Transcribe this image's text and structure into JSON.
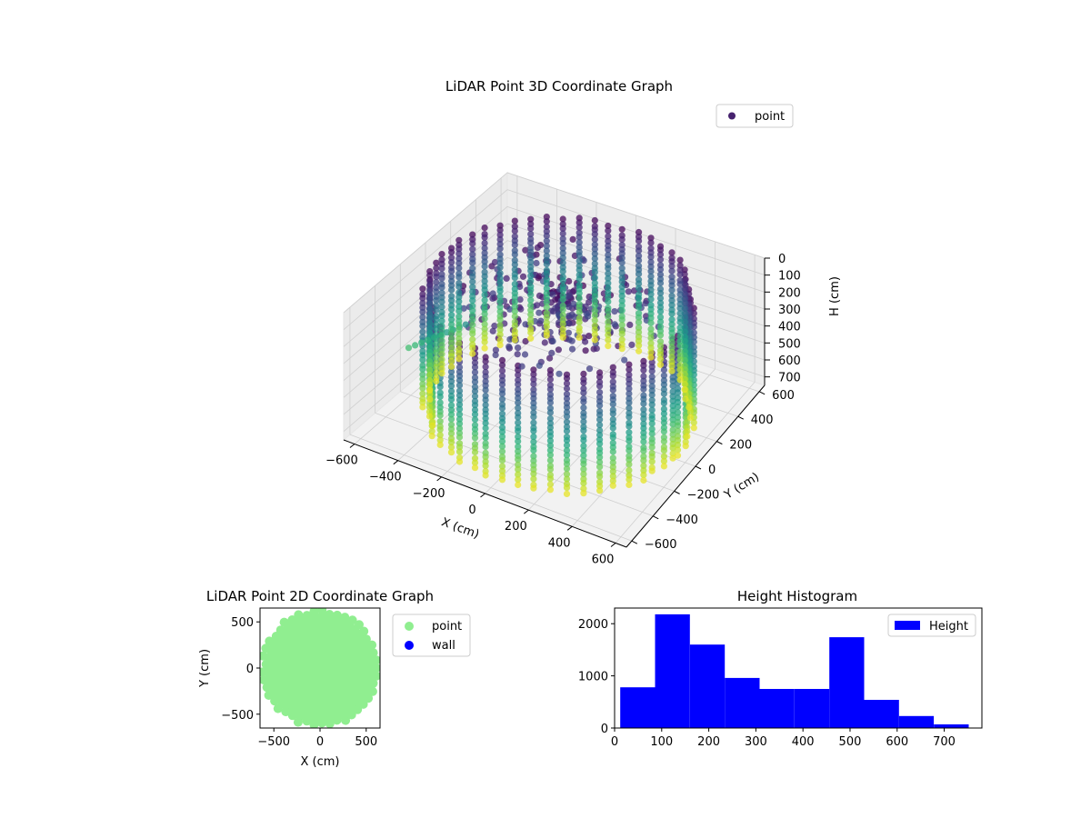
{
  "chart_data": [
    {
      "type": "scatter",
      "projection": "3d",
      "title": "LiDAR Point 3D Coordinate Graph",
      "xlabel": "X (cm)",
      "ylabel": "Y (cm)",
      "zlabel": "H (cm)",
      "xlim": [
        -650,
        650
      ],
      "ylim": [
        -650,
        650
      ],
      "zlim": [
        750,
        0
      ],
      "z_axis_inverted": true,
      "x_ticks": [
        -600,
        -400,
        -200,
        0,
        200,
        400,
        600
      ],
      "y_ticks": [
        -600,
        -400,
        -200,
        0,
        200,
        400,
        600
      ],
      "z_ticks": [
        0,
        100,
        200,
        300,
        400,
        500,
        600,
        700
      ],
      "colormap": "viridis",
      "legend": {
        "position": "top-right",
        "entries": [
          {
            "label": "point",
            "color": "#46226e"
          }
        ]
      },
      "series": [
        {
          "name": "point",
          "description_points": "approximately circular wall of radius ~560 cm sampled at heights 0-750 cm plus scattered interior points"
        }
      ],
      "grid": true
    },
    {
      "type": "scatter",
      "title": "LiDAR Point 2D Coordinate Graph",
      "xlabel": "X (cm)",
      "ylabel": "Y (cm)",
      "xlim": [
        -650,
        650
      ],
      "ylim": [
        -650,
        650
      ],
      "x_ticks": [
        -500,
        0,
        500
      ],
      "y_ticks": [
        -500,
        0,
        500
      ],
      "legend": {
        "position": "outside-right",
        "entries": [
          {
            "label": "point",
            "color": "#90ee90"
          },
          {
            "label": "wall",
            "color": "#0000ff"
          }
        ]
      },
      "series": [
        {
          "name": "point",
          "color": "#90ee90",
          "radius": 600
        }
      ]
    },
    {
      "type": "bar",
      "subtype": "histogram",
      "title": "Height Histogram",
      "xlabel": "",
      "ylabel": "",
      "xlim": [
        0,
        780
      ],
      "ylim": [
        0,
        2300
      ],
      "x_ticks": [
        0,
        100,
        200,
        300,
        400,
        500,
        600,
        700
      ],
      "y_ticks": [
        0,
        1000,
        2000
      ],
      "bar_color": "#0000ff",
      "legend": {
        "position": "top-right",
        "entries": [
          {
            "label": "Height",
            "color": "#0000ff"
          }
        ]
      },
      "bin_edges": [
        12,
        86,
        160,
        234,
        308,
        382,
        456,
        530,
        604,
        678,
        752
      ],
      "counts": [
        780,
        2180,
        1600,
        960,
        750,
        750,
        1740,
        540,
        230,
        70
      ]
    }
  ]
}
